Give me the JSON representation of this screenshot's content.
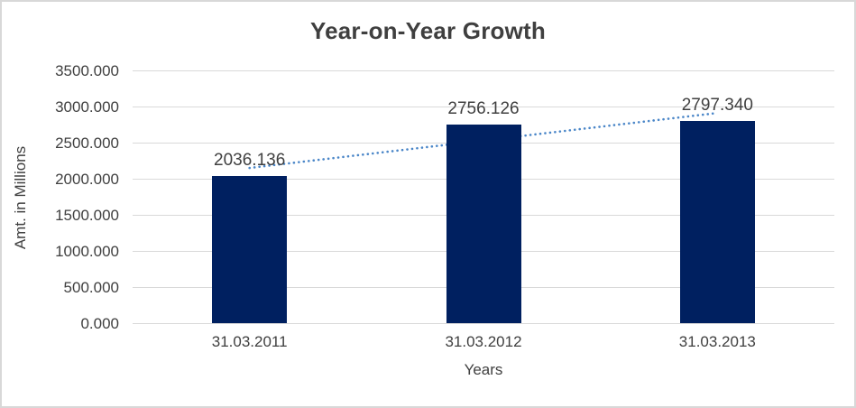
{
  "chart_data": {
    "type": "bar",
    "title": "Year-on-Year Growth",
    "xlabel": "Years",
    "ylabel": "Amt. in Millions",
    "categories": [
      "31.03.2011",
      "31.03.2012",
      "31.03.2013"
    ],
    "values": [
      2036.136,
      2756.126,
      2797.34
    ],
    "data_labels": [
      "2036.136",
      "2756.126",
      "2797.340"
    ],
    "ylim": [
      0,
      3500
    ],
    "ytick_values": [
      0,
      500,
      1000,
      1500,
      2000,
      2500,
      3000,
      3500
    ],
    "ytick_labels": [
      "0.000",
      "500.000",
      "1000.000",
      "1500.000",
      "2000.000",
      "2500.000",
      "3000.000",
      "3500.000"
    ],
    "grid": "horizontal",
    "legend": "none",
    "trendline": {
      "type": "linear",
      "style": "dotted",
      "color": "#4a86c8"
    },
    "colors": {
      "bar_fill": "#002060",
      "gridline": "#d9d9d9",
      "axis_line": "#d9d9d9",
      "text": "#404040",
      "title_text": "#3f3f3f",
      "frame_border": "#d8d8d8",
      "background": "#ffffff"
    }
  }
}
